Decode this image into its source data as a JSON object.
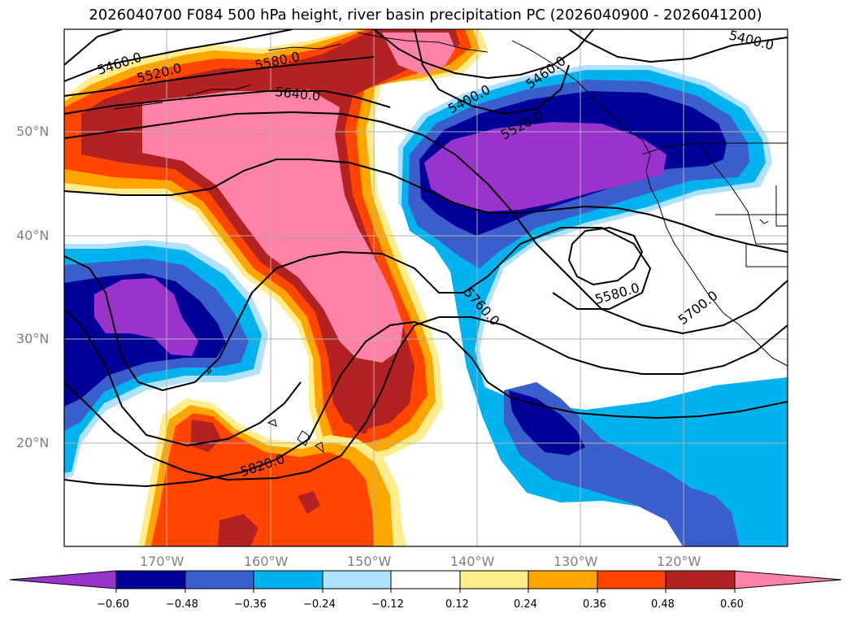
{
  "title": "2026040700 F084 500 hPa height, river basin precipitation PC (2026040900 - 2026041200)",
  "axes": {
    "lat_labels": [
      "50°N",
      "40°N",
      "30°N",
      "20°N"
    ],
    "lon_labels": [
      "170°W",
      "160°W",
      "150°W",
      "140°W",
      "130°W",
      "120°W"
    ]
  },
  "contour_labels": [
    "5460.0",
    "5520.0",
    "5580.0",
    "5640.0",
    "5400.0",
    "5520.0",
    "5400.0",
    "5580.0",
    "5760.0",
    "5700.0",
    "5820.0",
    "5460.0"
  ],
  "colorbar": {
    "ticks": [
      "−0.60",
      "−0.48",
      "−0.36",
      "−0.24",
      "−0.12",
      "0.12",
      "0.24",
      "0.36",
      "0.48",
      "0.60"
    ],
    "colors": [
      "#9933cc",
      "#000099",
      "#3a5fcd",
      "#00b2ee",
      "#b0e2ff",
      "#ffffff",
      "#ffec8b",
      "#ffa500",
      "#ff4500",
      "#b22222",
      "#ff83a8"
    ]
  },
  "colors": {
    "neg_strong": "#9933cc",
    "neg_high": "#000099",
    "neg_mid": "#3a5fcd",
    "neg_low": "#00b2ee",
    "neg_weak": "#b0e2ff",
    "pos_weak": "#ffec8b",
    "pos_low": "#ffa500",
    "pos_mid": "#ff4500",
    "pos_high": "#b22222",
    "pos_strong": "#ff83a8",
    "grid": "#b0b0b0"
  }
}
